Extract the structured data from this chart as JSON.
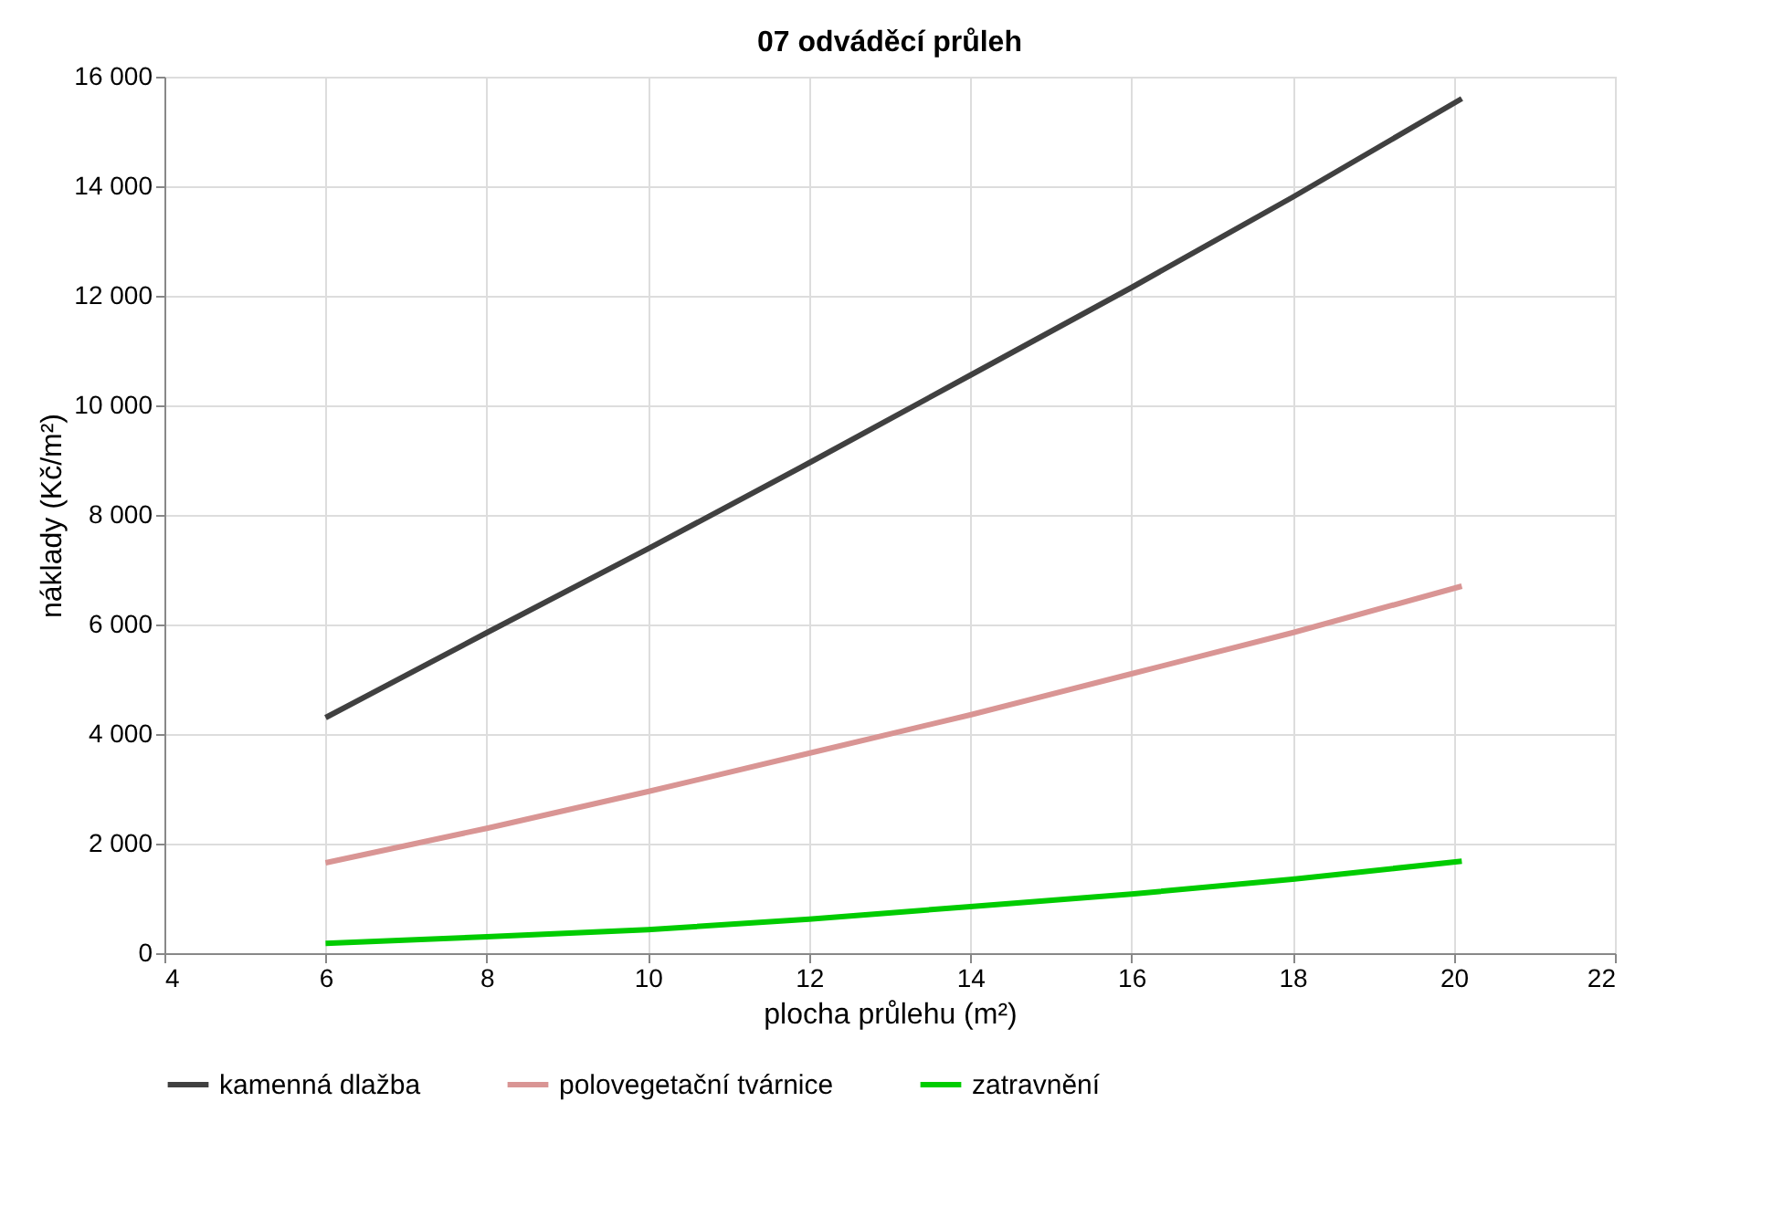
{
  "chart_data": {
    "type": "line",
    "title": "07 odváděcí průleh",
    "xlabel": "plocha průlehu (m²)",
    "ylabel": "náklady (Kč/m²)",
    "x": [
      6,
      8,
      10,
      12,
      14,
      16,
      18,
      20.1
    ],
    "series": [
      {
        "name": "kamenná dlažba",
        "color": "#404040",
        "values": [
          4300,
          5850,
          7380,
          8950,
          10550,
          12150,
          13800,
          15600
        ]
      },
      {
        "name": "polovegetační tvárnice",
        "color": "#d99594",
        "values": [
          1650,
          2280,
          2950,
          3650,
          4350,
          5100,
          5850,
          6700
        ]
      },
      {
        "name": "zatravnění",
        "color": "#00cc00",
        "values": [
          180,
          300,
          430,
          620,
          850,
          1080,
          1350,
          1680
        ]
      }
    ],
    "xlim": [
      4,
      22
    ],
    "xticks": [
      4,
      6,
      8,
      10,
      12,
      14,
      16,
      18,
      20,
      22
    ],
    "ylim": [
      0,
      16000
    ],
    "yticks": [
      0,
      {
        "value": 2000,
        "label": "2 000"
      },
      {
        "value": 4000,
        "label": "4 000"
      },
      {
        "value": 6000,
        "label": "6 000"
      },
      {
        "value": 8000,
        "label": "8 000"
      },
      {
        "value": 10000,
        "label": "10 000"
      },
      {
        "value": 12000,
        "label": "12 000"
      },
      {
        "value": 14000,
        "label": "14 000"
      },
      {
        "value": 16000,
        "label": "16 000"
      }
    ],
    "grid": true,
    "legend": "bottom",
    "marker": "none",
    "line_style": "solid"
  }
}
